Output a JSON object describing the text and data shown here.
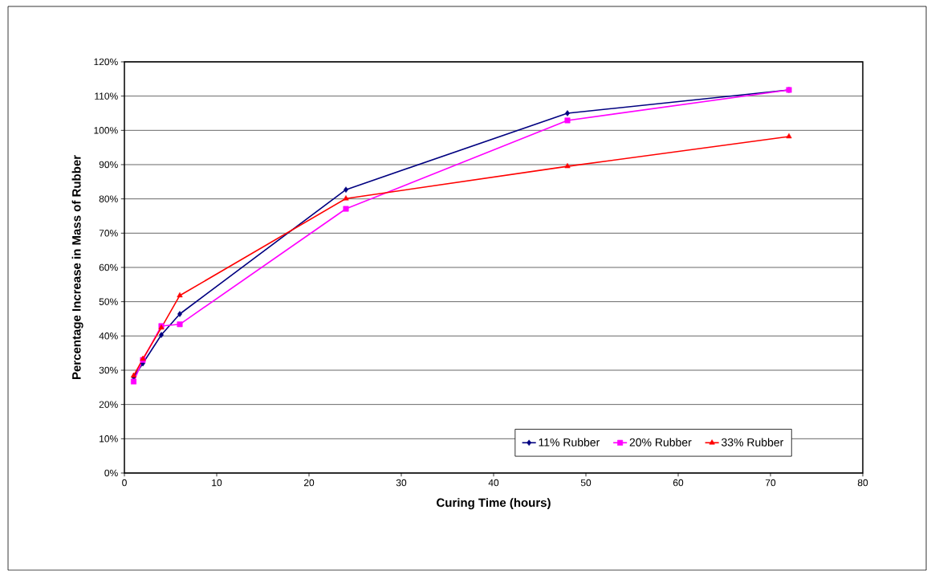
{
  "chart_data": {
    "type": "line",
    "xlabel": "Curing Time (hours)",
    "ylabel": "Percentage Increase in Mass of Rubber",
    "x": [
      1,
      2,
      4,
      6,
      24,
      48,
      72
    ],
    "series": [
      {
        "name": "11% Rubber",
        "color": "#000080",
        "marker": "diamond",
        "values": [
          28,
          32,
          40.3,
          46.4,
          82.7,
          105,
          111.8
        ]
      },
      {
        "name": "20% Rubber",
        "color": "#ff00ff",
        "marker": "square",
        "values": [
          26.7,
          33,
          42.9,
          43.4,
          77.1,
          102.9,
          111.8
        ]
      },
      {
        "name": "33% Rubber",
        "color": "#ff0000",
        "marker": "triangle",
        "values": [
          28.4,
          33.3,
          42.4,
          51.8,
          80.1,
          89.5,
          98.2
        ]
      }
    ],
    "xlim": [
      0,
      80
    ],
    "xticks": [
      0,
      10,
      20,
      30,
      40,
      50,
      60,
      70,
      80
    ],
    "ylim": [
      0,
      120
    ],
    "yticks": [
      {
        "value": 0,
        "label": "0%"
      },
      {
        "value": 10,
        "label": "10%"
      },
      {
        "value": 20,
        "label": "20%"
      },
      {
        "value": 30,
        "label": "30%"
      },
      {
        "value": 40,
        "label": "40%"
      },
      {
        "value": 50,
        "label": "50%"
      },
      {
        "value": 60,
        "label": "60%"
      },
      {
        "value": 70,
        "label": "70%"
      },
      {
        "value": 80,
        "label": "80%"
      },
      {
        "value": 90,
        "label": "90%"
      },
      {
        "value": 100,
        "label": "100%"
      },
      {
        "value": 110,
        "label": "110%"
      },
      {
        "value": 120,
        "label": "120%"
      }
    ],
    "grid": "y",
    "legend": "bottom right",
    "line_style": "solid"
  }
}
